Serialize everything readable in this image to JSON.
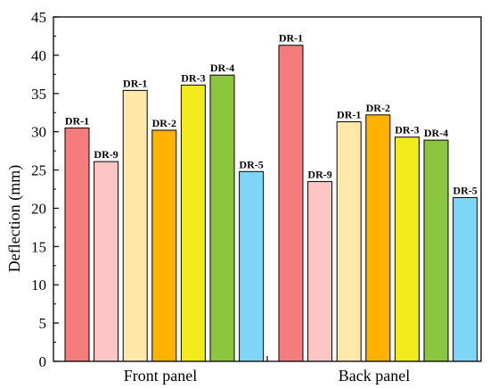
{
  "chart_data": {
    "type": "bar",
    "ylabel": "Deflection (mm)",
    "xlabel": "",
    "ylim": [
      0,
      45
    ],
    "yticks": [
      0,
      5,
      10,
      15,
      20,
      25,
      30,
      35,
      40,
      45
    ],
    "grid": false,
    "legend": "none",
    "groups": [
      {
        "category": "Front panel",
        "bars": [
          {
            "label": "DR-1",
            "value": 30.5,
            "color": "#F47C7C"
          },
          {
            "label": "DR-9",
            "value": 26.1,
            "color": "#FFC5C5"
          },
          {
            "label": "DR-1",
            "value": 35.4,
            "color": "#FFE8AA"
          },
          {
            "label": "DR-2",
            "value": 30.2,
            "color": "#FFB300"
          },
          {
            "label": "DR-3",
            "value": 36.1,
            "color": "#F2EA1A"
          },
          {
            "label": "DR-4",
            "value": 37.4,
            "color": "#8CC63F"
          },
          {
            "label": "DR-5",
            "value": 24.8,
            "color": "#7DD6F7"
          }
        ]
      },
      {
        "category": "Back panel",
        "bars": [
          {
            "label": "DR-1",
            "value": 41.3,
            "color": "#F47C7C"
          },
          {
            "label": "DR-9",
            "value": 23.5,
            "color": "#FFC5C5"
          },
          {
            "label": "DR-1",
            "value": 31.3,
            "color": "#FFE8AA"
          },
          {
            "label": "DR-2",
            "value": 32.2,
            "color": "#FFB300"
          },
          {
            "label": "DR-3",
            "value": 29.3,
            "color": "#F2EA1A"
          },
          {
            "label": "DR-4",
            "value": 28.9,
            "color": "#8CC63F"
          },
          {
            "label": "DR-5",
            "value": 21.4,
            "color": "#7DD6F7"
          }
        ]
      }
    ]
  }
}
